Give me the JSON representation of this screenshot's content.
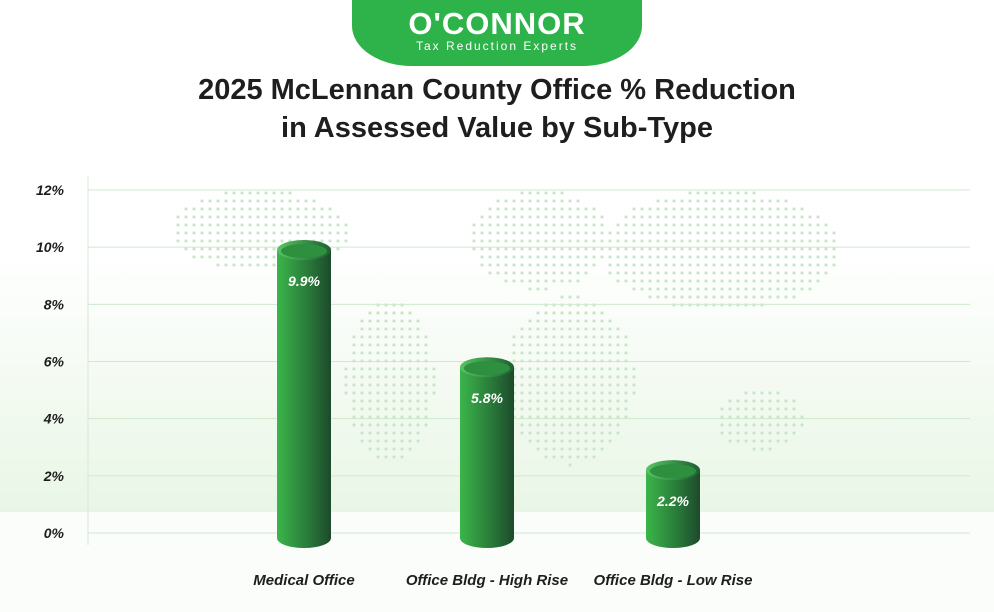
{
  "logo": {
    "name": "O'CONNOR",
    "tagline": "Tax Reduction Experts"
  },
  "chart_data": {
    "type": "bar",
    "title": [
      "2025 McLennan County Office % Reduction",
      "in Assessed Value by Sub-Type"
    ],
    "categories": [
      "Medical Office",
      "Office Bldg - High Rise",
      "Office Bldg - Low Rise"
    ],
    "values": [
      9.9,
      5.8,
      2.2
    ],
    "data_labels": [
      "9.9%",
      "5.8%",
      "2.2%"
    ],
    "y_ticks": [
      0,
      2,
      4,
      6,
      8,
      10,
      12
    ],
    "y_tick_labels": [
      "0%",
      "2%",
      "4%",
      "6%",
      "8%",
      "10%",
      "12%"
    ],
    "ylim": [
      0,
      12
    ],
    "grid": true,
    "colors": {
      "bar_light": "#3bb54a",
      "bar_dark": "#1d4a2b",
      "bar_top": "#2e8f3f",
      "grid": "#cfe8cf",
      "brand": "#2db34a",
      "band": "#e9f6e6"
    }
  }
}
